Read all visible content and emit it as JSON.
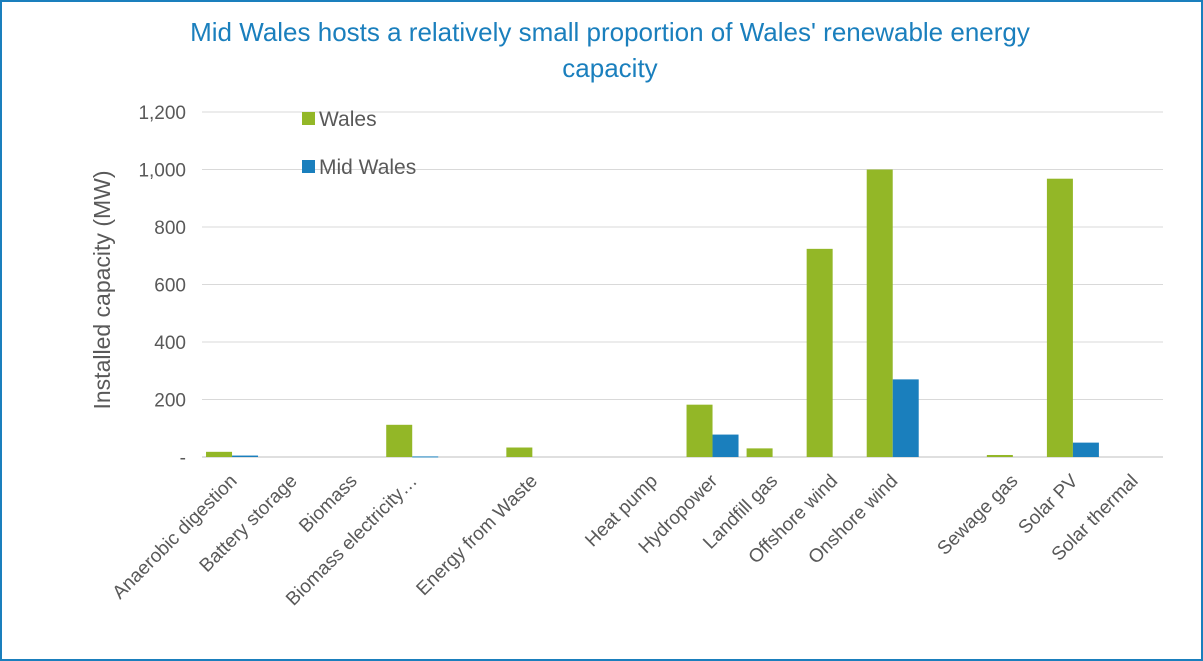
{
  "chart_data": {
    "type": "bar",
    "title": "Mid Wales hosts a relatively small proportion of Wales' renewable energy capacity",
    "xlabel": "",
    "ylabel": "Installed capacity (MW)",
    "ylim": [
      0,
      1200
    ],
    "yticks": [
      0,
      200,
      400,
      600,
      800,
      1000,
      1200
    ],
    "ytick_labels": [
      "-",
      "200",
      "400",
      "600",
      "800",
      "1,000",
      "1,200"
    ],
    "grid": true,
    "legend_position": "top-left",
    "categories": [
      "Anaerobic digestion",
      "Battery storage",
      "Biomass",
      "Biomass electricity…",
      "",
      "Energy from Waste",
      "",
      "Heat pump",
      "Hydropower",
      "Landfill gas",
      "Offshore wind",
      "Onshore wind",
      "",
      "Sewage gas",
      "Solar PV",
      "Solar thermal"
    ],
    "series": [
      {
        "name": "Wales",
        "color": "#93b727",
        "values": [
          18,
          0,
          0,
          112,
          0,
          33,
          0,
          0,
          182,
          30,
          724,
          1000,
          0,
          7,
          968,
          0
        ]
      },
      {
        "name": "Mid Wales",
        "color": "#1a7fbd",
        "values": [
          5,
          0,
          0,
          2,
          0,
          0,
          0,
          0,
          78,
          0,
          0,
          270,
          0,
          0,
          50,
          0
        ]
      }
    ]
  }
}
